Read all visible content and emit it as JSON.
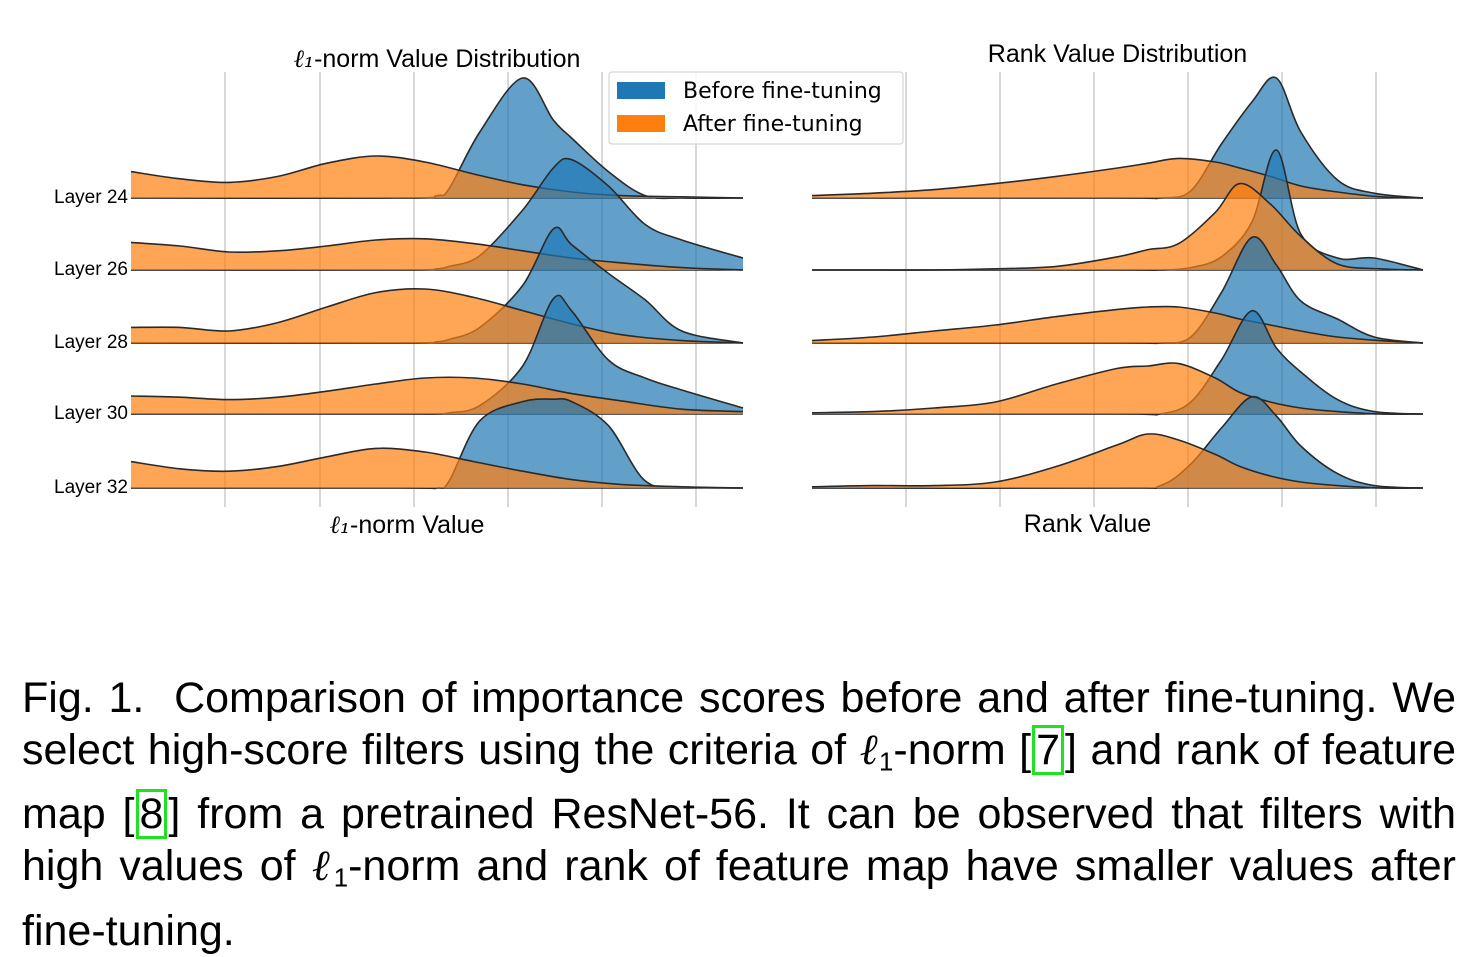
{
  "legend": {
    "items": [
      {
        "label": "Before fine-tuning",
        "color": "#1f77b4"
      },
      {
        "label": "After fine-tuning",
        "color": "#ff7f0e"
      }
    ]
  },
  "chart_data": [
    {
      "type": "area",
      "kind": "ridgeline-density",
      "title": "-norm Value Distribution",
      "title_symbol": "ℓ₁",
      "xlabel": "-norm Value",
      "xlabel_symbol": "ℓ₁",
      "rows": [
        "Layer 24",
        "Layer 26",
        "Layer 28",
        "Layer 30",
        "Layer 32"
      ],
      "grid": true,
      "legend": "upper-center",
      "series": [
        {
          "name": "Before fine-tuning",
          "x": [
            0,
            0.44,
            0.5,
            0.52,
            0.57,
            0.64,
            0.69,
            0.72,
            0.78,
            0.84,
            0.9,
            1.0
          ],
          "rows": [
            [
              0,
              0,
              0.02,
              0.08,
              0.55,
              1.0,
              0.65,
              0.5,
              0.22,
              0.02,
              0,
              0
            ],
            [
              0,
              0,
              0.01,
              0.03,
              0.12,
              0.5,
              0.85,
              0.92,
              0.7,
              0.38,
              0.25,
              0.1
            ],
            [
              0,
              0,
              0.01,
              0.03,
              0.13,
              0.48,
              0.95,
              0.82,
              0.58,
              0.36,
              0.1,
              0
            ],
            [
              0,
              0,
              0,
              0.01,
              0.07,
              0.4,
              0.96,
              0.86,
              0.45,
              0.3,
              0.2,
              0.05
            ],
            [
              0,
              0,
              0,
              0.06,
              0.56,
              0.72,
              0.74,
              0.72,
              0.52,
              0.06,
              0.01,
              0
            ]
          ]
        },
        {
          "name": "After fine-tuning",
          "x": [
            0,
            0.08,
            0.16,
            0.24,
            0.32,
            0.4,
            0.48,
            0.56,
            0.64,
            0.72,
            0.8,
            0.9,
            1.0
          ],
          "rows": [
            [
              0.22,
              0.16,
              0.13,
              0.18,
              0.29,
              0.35,
              0.3,
              0.2,
              0.11,
              0.05,
              0.02,
              0.01,
              0
            ],
            [
              0.23,
              0.2,
              0.15,
              0.16,
              0.2,
              0.25,
              0.26,
              0.22,
              0.16,
              0.1,
              0.06,
              0.02,
              0
            ],
            [
              0.13,
              0.13,
              0.1,
              0.17,
              0.3,
              0.42,
              0.45,
              0.38,
              0.27,
              0.16,
              0.07,
              0.02,
              0
            ],
            [
              0.15,
              0.14,
              0.12,
              0.14,
              0.19,
              0.25,
              0.3,
              0.3,
              0.25,
              0.17,
              0.11,
              0.04,
              0.02
            ],
            [
              0.22,
              0.16,
              0.14,
              0.18,
              0.26,
              0.33,
              0.3,
              0.22,
              0.14,
              0.07,
              0.03,
              0.01,
              0
            ]
          ]
        }
      ]
    },
    {
      "type": "area",
      "kind": "ridgeline-density",
      "title": "Rank Value Distribution",
      "xlabel": "Rank Value",
      "rows": [
        "Layer 24",
        "Layer 26",
        "Layer 28",
        "Layer 30",
        "Layer 32"
      ],
      "grid": true,
      "series": [
        {
          "name": "Before fine-tuning",
          "x": [
            0,
            0.5,
            0.57,
            0.62,
            0.67,
            0.72,
            0.76,
            0.8,
            0.86,
            0.92,
            1.0
          ],
          "rows": [
            [
              0,
              0,
              0,
              0.06,
              0.45,
              0.8,
              1.0,
              0.55,
              0.15,
              0.04,
              0
            ],
            [
              0,
              0,
              0,
              0.02,
              0.11,
              0.4,
              1.0,
              0.3,
              0.1,
              0.1,
              0
            ],
            [
              0,
              0,
              0,
              0.05,
              0.42,
              0.88,
              0.65,
              0.35,
              0.2,
              0.05,
              0
            ],
            [
              0,
              0,
              0,
              0.1,
              0.45,
              0.86,
              0.55,
              0.35,
              0.12,
              0.02,
              0
            ],
            [
              0,
              0,
              0.02,
              0.2,
              0.5,
              0.76,
              0.6,
              0.35,
              0.12,
              0.02,
              0
            ]
          ]
        },
        {
          "name": "After fine-tuning",
          "x": [
            0,
            0.1,
            0.2,
            0.3,
            0.4,
            0.5,
            0.55,
            0.6,
            0.66,
            0.7,
            0.75,
            0.8,
            0.86,
            0.93,
            1.0
          ],
          "rows": [
            [
              0.02,
              0.04,
              0.07,
              0.12,
              0.18,
              0.25,
              0.29,
              0.33,
              0.3,
              0.25,
              0.18,
              0.1,
              0.05,
              0.01,
              0
            ],
            [
              0,
              0,
              0,
              0.01,
              0.03,
              0.11,
              0.17,
              0.22,
              0.48,
              0.72,
              0.55,
              0.28,
              0.05,
              0.01,
              0
            ],
            [
              0.02,
              0.05,
              0.1,
              0.15,
              0.22,
              0.28,
              0.3,
              0.3,
              0.25,
              0.2,
              0.15,
              0.1,
              0.05,
              0.02,
              0
            ],
            [
              0.01,
              0.02,
              0.05,
              0.1,
              0.25,
              0.38,
              0.4,
              0.42,
              0.3,
              0.18,
              0.1,
              0.05,
              0.02,
              0,
              0
            ],
            [
              0.01,
              0.02,
              0.02,
              0.05,
              0.18,
              0.36,
              0.45,
              0.4,
              0.28,
              0.18,
              0.1,
              0.05,
              0.02,
              0,
              0
            ]
          ]
        }
      ]
    }
  ],
  "caption": {
    "fig_label": "Fig. 1.",
    "line1": "Comparison of importance scores before and after fine-tuning.",
    "line2a": "We select high-score filters using the criteria of",
    "symbol": "ℓ",
    "sub": "1",
    "line2b": "-norm",
    "ref1": "7",
    "line2c": "and rank of feature map",
    "ref2": "8",
    "line3": "from a pretrained ResNet-56. It can be observed that filters with high values of",
    "line4": "-norm and rank of feature map have smaller values after fine-tuning."
  }
}
